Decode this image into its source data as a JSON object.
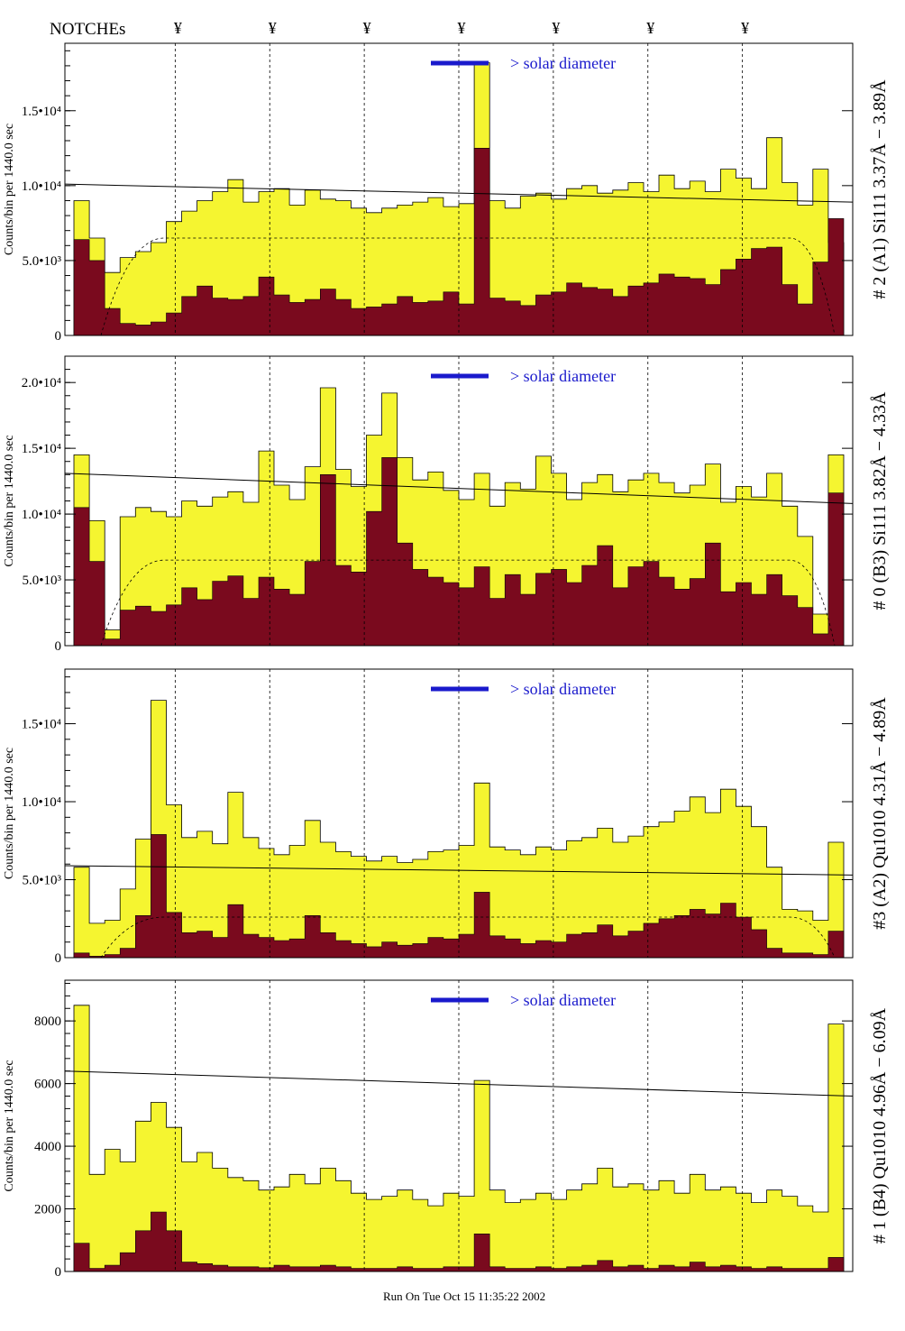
{
  "header": {
    "notches_label": "NOTCHEs",
    "notch_symbol": "¥",
    "notch_count": 7
  },
  "footer": {
    "run_stamp": "Run On Tue Oct 15 11:35:22 2002"
  },
  "colors": {
    "fill_total": "#f5f530",
    "fill_sub": "#7a0a1e",
    "annotation_blue": "#1a1acc",
    "frame": "#000000"
  },
  "chart_data": [
    {
      "type": "area",
      "panel_label": "# 2 (A1) Si111  3.37Å − 3.89Å",
      "ylabel": "Counts/bin per   1440.0 sec",
      "annotation": "> solar diameter",
      "ylim": [
        0,
        19500
      ],
      "yticks": [
        0,
        5000,
        10000,
        15000
      ],
      "ytick_labels": [
        "0",
        "5.0•10³",
        "1.0•10⁴",
        "1.5•10⁴"
      ],
      "xlim": [
        0,
        100
      ],
      "notch_positions": [
        14,
        26,
        38,
        50,
        62,
        74,
        86
      ],
      "series": [
        {
          "name": "",
          "values": [
            9000,
            6500,
            4200,
            5200,
            5600,
            6200,
            7600,
            8300,
            9000,
            9600,
            10400,
            8900,
            9600,
            9800,
            8700,
            9700,
            9100,
            9000,
            8500,
            8200,
            8500,
            8700,
            8900,
            9200,
            8600,
            8800,
            18200,
            9000,
            8500,
            9300,
            9500,
            9100,
            9800,
            10000,
            9500,
            9700,
            10200,
            9600,
            10700,
            9800,
            10300,
            9600,
            11100,
            10500,
            9800,
            13200,
            10200,
            8700,
            11100,
            6200
          ]
        },
        {
          "name": "",
          "values": [
            6400,
            5000,
            1800,
            800,
            700,
            900,
            1500,
            2600,
            3300,
            2500,
            2400,
            2600,
            3900,
            2700,
            2200,
            2400,
            3100,
            2400,
            1800,
            1900,
            2100,
            2600,
            2200,
            2300,
            2900,
            2100,
            12500,
            2500,
            2300,
            2000,
            2700,
            2900,
            3500,
            3200,
            3100,
            2600,
            3300,
            3500,
            4100,
            3900,
            3800,
            3400,
            4400,
            5100,
            5800,
            5900,
            3400,
            2100,
            4900,
            7800
          ]
        }
      ],
      "reference_line": {
        "start": 10100,
        "end": 8900
      },
      "dashed_curve": {
        "plateau": 6500
      }
    },
    {
      "type": "area",
      "panel_label": "# 0 (B3) Si111  3.82Å − 4.33Å",
      "ylabel": "Counts/bin per   1440.0 sec",
      "annotation": "> solar diameter",
      "ylim": [
        0,
        22000
      ],
      "yticks": [
        0,
        5000,
        10000,
        15000,
        20000
      ],
      "ytick_labels": [
        "0",
        "5.0•10³",
        "1.0•10⁴",
        "1.5•10⁴",
        "2.0•10⁴"
      ],
      "xlim": [
        0,
        100
      ],
      "notch_positions": [
        14,
        26,
        38,
        50,
        62,
        74,
        86
      ],
      "series": [
        {
          "name": "",
          "values": [
            14500,
            9500,
            1200,
            9800,
            10500,
            10200,
            9800,
            11000,
            10600,
            11300,
            11700,
            10900,
            14800,
            12200,
            11100,
            13600,
            19600,
            13400,
            12100,
            16000,
            19200,
            14300,
            12600,
            13200,
            11800,
            11100,
            13100,
            10600,
            12400,
            11900,
            14400,
            13100,
            11100,
            12400,
            13000,
            11700,
            12600,
            13100,
            12400,
            11600,
            12200,
            13800,
            10900,
            12100,
            11300,
            13100,
            10600,
            8300,
            2400,
            14500
          ]
        },
        {
          "name": "",
          "values": [
            10500,
            6400,
            500,
            2700,
            3000,
            2600,
            3100,
            4400,
            3500,
            4900,
            5300,
            3600,
            5200,
            4300,
            3900,
            6400,
            13000,
            6100,
            5600,
            10200,
            14300,
            7800,
            5800,
            5200,
            4800,
            4400,
            6000,
            3600,
            5400,
            3900,
            5500,
            5800,
            4800,
            6100,
            7600,
            4400,
            6000,
            6400,
            5200,
            4300,
            5100,
            7800,
            4100,
            4800,
            3900,
            5400,
            3800,
            2900,
            900,
            11600
          ]
        }
      ],
      "reference_line": {
        "start": 13100,
        "end": 10800
      },
      "dashed_curve": {
        "plateau": 6500
      }
    },
    {
      "type": "area",
      "panel_label": "#3 (A2) Qu1010  4.31Å − 4.89Å",
      "ylabel": "Counts/bin per   1440.0 sec",
      "annotation": "> solar diameter",
      "ylim": [
        0,
        18500
      ],
      "yticks": [
        0,
        5000,
        10000,
        15000
      ],
      "ytick_labels": [
        "0",
        "5.0•10³",
        "1.0•10⁴",
        "1.5•10⁴"
      ],
      "xlim": [
        0,
        100
      ],
      "notch_positions": [
        14,
        26,
        38,
        50,
        62,
        74,
        86
      ],
      "series": [
        {
          "name": "",
          "values": [
            5800,
            2200,
            2400,
            4400,
            7600,
            16500,
            9800,
            7700,
            8100,
            7300,
            10600,
            7700,
            7000,
            6600,
            7200,
            8800,
            7400,
            6800,
            6500,
            6200,
            6500,
            6100,
            6300,
            6800,
            6900,
            7200,
            11200,
            7100,
            6900,
            6600,
            7100,
            6900,
            7500,
            7700,
            8300,
            7400,
            7800,
            8400,
            8700,
            9400,
            10300,
            9300,
            10800,
            9700,
            8400,
            5800,
            3100,
            3000,
            2400,
            7400
          ]
        },
        {
          "name": "",
          "values": [
            300,
            100,
            200,
            600,
            2700,
            7900,
            2900,
            1600,
            1700,
            1300,
            3400,
            1500,
            1300,
            1100,
            1200,
            2700,
            1600,
            1100,
            900,
            700,
            1000,
            800,
            900,
            1300,
            1200,
            1500,
            4200,
            1400,
            1200,
            900,
            1100,
            1000,
            1500,
            1600,
            2100,
            1400,
            1700,
            2200,
            2500,
            2700,
            3100,
            2800,
            3500,
            2600,
            1800,
            600,
            300,
            300,
            200,
            1700
          ]
        }
      ],
      "reference_line": {
        "start": 5900,
        "end": 5300
      },
      "dashed_curve": {
        "plateau": 2600
      }
    },
    {
      "type": "area",
      "panel_label": "# 1 (B4) Qu1010 4.96Å − 6.09Å",
      "ylabel": "Counts/bin per   1440.0 sec",
      "annotation": "> solar diameter",
      "ylim": [
        0,
        9300
      ],
      "yticks": [
        0,
        2000,
        4000,
        6000,
        8000
      ],
      "ytick_labels": [
        "0",
        "2000",
        "4000",
        "6000",
        "8000"
      ],
      "xlim": [
        0,
        100
      ],
      "notch_positions": [
        14,
        26,
        38,
        50,
        62,
        74,
        86
      ],
      "series": [
        {
          "name": "",
          "values": [
            8500,
            3100,
            3900,
            3500,
            4800,
            5400,
            4600,
            3500,
            3800,
            3300,
            3000,
            2900,
            2600,
            2700,
            3100,
            2800,
            3300,
            2900,
            2500,
            2300,
            2400,
            2600,
            2300,
            2100,
            2500,
            2400,
            6100,
            2600,
            2200,
            2300,
            2500,
            2300,
            2600,
            2800,
            3300,
            2700,
            2800,
            2600,
            2900,
            2500,
            3100,
            2600,
            2700,
            2500,
            2200,
            2600,
            2400,
            2100,
            1900,
            7900
          ]
        },
        {
          "name": "",
          "values": [
            900,
            100,
            200,
            600,
            1300,
            1900,
            1300,
            300,
            250,
            200,
            150,
            150,
            120,
            200,
            150,
            150,
            200,
            150,
            100,
            100,
            100,
            150,
            100,
            100,
            150,
            150,
            1200,
            150,
            100,
            100,
            150,
            100,
            150,
            200,
            350,
            150,
            200,
            100,
            200,
            150,
            300,
            150,
            200,
            150,
            100,
            150,
            100,
            100,
            100,
            450
          ]
        }
      ],
      "reference_line": {
        "start": 6400,
        "end": 5600
      },
      "dashed_curve": {
        "plateau": 0
      }
    }
  ]
}
